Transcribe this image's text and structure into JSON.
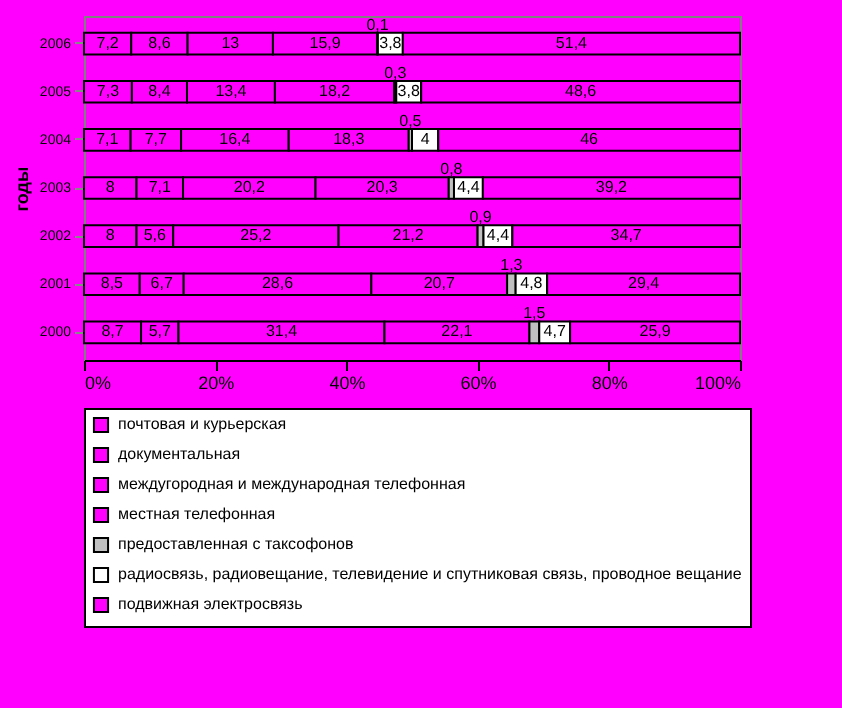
{
  "chart_data": {
    "type": "bar",
    "orientation": "horizontal",
    "stacked": true,
    "ylabel": "годы",
    "categories": [
      "2006",
      "2005",
      "2004",
      "2003",
      "2002",
      "2001",
      "2000"
    ],
    "series": [
      {
        "name": "почтовая и курьерская",
        "color": "#ff00ff",
        "values": [
          7.2,
          7.3,
          7.1,
          8,
          8,
          8.5,
          8.7
        ],
        "value_labels": [
          "7,2",
          "7,3",
          "7,1",
          "8",
          "8",
          "8,5",
          "8,7"
        ]
      },
      {
        "name": "документальная",
        "color": "#ff00ff",
        "values": [
          8.6,
          8.4,
          7.7,
          7.1,
          5.6,
          6.7,
          5.7
        ],
        "value_labels": [
          "8,6",
          "8,4",
          "7,7",
          "7,1",
          "5,6",
          "6,7",
          "5,7"
        ]
      },
      {
        "name": "междугородная и международная телефонная",
        "color": "#ff00ff",
        "values": [
          13,
          13.4,
          16.4,
          20.2,
          25.2,
          28.6,
          31.4
        ],
        "value_labels": [
          "13",
          "13,4",
          "16,4",
          "20,2",
          "25,2",
          "28,6",
          "31,4"
        ]
      },
      {
        "name": "местная телефонная",
        "color": "#ff00ff",
        "values": [
          15.9,
          18.2,
          18.3,
          20.3,
          21.2,
          20.7,
          22.1
        ],
        "value_labels": [
          "15,9",
          "18,2",
          "18,3",
          "20,3",
          "21,2",
          "20,7",
          "22,1"
        ]
      },
      {
        "name": "предоставленная с таксофонов",
        "color": "#c0c0c0",
        "values": [
          0.1,
          0.3,
          0.5,
          0.8,
          0.9,
          1.3,
          1.5
        ],
        "value_labels": [
          "0,1",
          "0,3",
          "0,5",
          "0,8",
          "0,9",
          "1,3",
          "1,5"
        ]
      },
      {
        "name": "радиосвязь, радиовещание, телевидение и спутниковая связь, проводное вещание",
        "color": "#ffffff",
        "values": [
          3.8,
          3.8,
          4,
          4.4,
          4.4,
          4.8,
          4.7
        ],
        "value_labels": [
          "3,8",
          "3,8",
          "4",
          "4,4",
          "4,4",
          "4,8",
          "4,7"
        ]
      },
      {
        "name": "подвижная электросвязь",
        "color": "#ff00ff",
        "values": [
          51.4,
          48.6,
          46,
          39.2,
          34.7,
          29.4,
          25.9
        ],
        "value_labels": [
          "51,4",
          "48,6",
          "46",
          "39,2",
          "34,7",
          "29,4",
          "25,9"
        ]
      }
    ],
    "xlim": [
      0,
      100
    ],
    "xticks": [
      {
        "value": 0,
        "label": "0%"
      },
      {
        "value": 20,
        "label": "20%"
      },
      {
        "value": 40,
        "label": "40%"
      },
      {
        "value": 60,
        "label": "60%"
      },
      {
        "value": 80,
        "label": "80%"
      },
      {
        "value": 100,
        "label": "100%"
      }
    ],
    "legend": "bottom",
    "grid": false
  }
}
